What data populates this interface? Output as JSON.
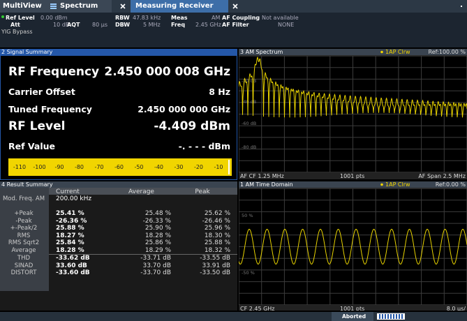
{
  "tabs": {
    "multiview": "MultiView",
    "spectrum": "Spectrum",
    "active": "Measuring Receiver"
  },
  "info": [
    {
      "label": "Ref Level",
      "value": "0.00 dBm"
    },
    {
      "label": "RBW",
      "value": "47.83 kHz"
    },
    {
      "label": "Meas",
      "value": "AM"
    },
    {
      "label": "AF Coupling",
      "value": "Not available"
    },
    {
      "label": "Att",
      "value": "10 dB"
    },
    {
      "label": "AQT",
      "value": "80 µs"
    },
    {
      "label": "DBW",
      "value": "5 MHz"
    },
    {
      "label": "Freq",
      "value": "2.45 GHz"
    },
    {
      "label": "AF Filter",
      "value": "NONE"
    }
  ],
  "info_note": "YIG Bypass",
  "signal_summary": {
    "title": "2 Signal Summary",
    "rows": [
      {
        "label": "RF Frequency",
        "value": "2.450 000 008 GHz"
      },
      {
        "label": "Carrier Offset",
        "value": "8 Hz"
      },
      {
        "label": "Tuned Frequency",
        "value": "2.450 000 000 GHz"
      },
      {
        "label": "RF Level",
        "value": "-4.409 dBm"
      },
      {
        "label": "Ref Value",
        "value": "-. - - - dBm"
      }
    ],
    "scale": [
      -110,
      -100,
      -90,
      -80,
      -70,
      -60,
      -50,
      -40,
      -30,
      -20,
      -10
    ]
  },
  "result_summary": {
    "title": "4 Result Summary",
    "header": [
      "Current",
      "Average",
      "Peak"
    ],
    "rows": [
      [
        "Mod. Freq. AM",
        "200.00 kHz",
        "",
        ""
      ],
      [
        "+Peak",
        "25.41 %",
        "25.48 %",
        "25.62 %"
      ],
      [
        "-Peak",
        "-26.36 %",
        "-26.33 %",
        "-26.46 %"
      ],
      [
        "+-Peak/2",
        "25.88 %",
        "25.90 %",
        "25.96 %"
      ],
      [
        "RMS",
        "18.27 %",
        "18.28 %",
        "18.30 %"
      ],
      [
        "RMS Sqrt2",
        "25.84 %",
        "25.86 %",
        "25.88 %"
      ],
      [
        "Average",
        "18.28 %",
        "18.29 %",
        "18.32 %"
      ],
      [
        "THD",
        "-33.62 dB",
        "-33.71 dB",
        "-33.55 dB"
      ],
      [
        "SINAD",
        "33.60 dB",
        "33.70 dB",
        "33.91 dB"
      ],
      [
        "DISTORT",
        "-33.60 dB",
        "-33.70 dB",
        "-33.50 dB"
      ]
    ]
  },
  "am_spectrum": {
    "title": "3 AM Spectrum",
    "trace": "1AP Clrw",
    "ref": "Ref:100.00 %",
    "levels": [
      "-20 dB",
      "-40 dB",
      "-60 dB",
      "-80 dB"
    ],
    "footer": [
      "AF CF 1.25 MHz",
      "1001 pts",
      "AF Span 2.5 MHz"
    ]
  },
  "am_time": {
    "title": "1 AM Time Domain",
    "trace": "1AP Clrw",
    "ref": "Ref:0.00 %",
    "levels": [
      "50 %",
      "-50 %"
    ],
    "footer": [
      "CF 2.45 GHz",
      "1001 pts",
      "8.0 µs/"
    ]
  },
  "status": "Aborted"
}
